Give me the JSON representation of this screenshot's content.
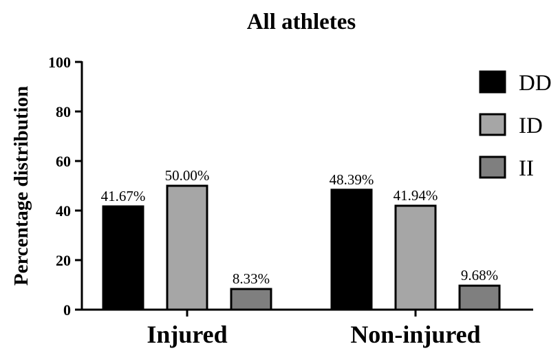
{
  "chart_data": {
    "type": "bar",
    "title": "All athletes",
    "xlabel": "",
    "ylabel": "Percentage distribution",
    "ylim": [
      0,
      100
    ],
    "yticks": [
      0,
      20,
      40,
      60,
      80,
      100
    ],
    "categories": [
      "Injured",
      "Non-injured"
    ],
    "series": [
      {
        "name": "DD",
        "color": "#000000",
        "values": [
          41.67,
          48.39
        ],
        "labels": [
          "41.67%",
          "48.39%"
        ]
      },
      {
        "name": "ID",
        "color": "#a6a6a6",
        "values": [
          50.0,
          41.94
        ],
        "labels": [
          "50.00%",
          "41.94%"
        ]
      },
      {
        "name": "II",
        "color": "#7f7f7f",
        "values": [
          8.33,
          9.68
        ],
        "labels": [
          "8.33%",
          "9.68%"
        ]
      }
    ],
    "legend": "top-right",
    "grid": false
  }
}
